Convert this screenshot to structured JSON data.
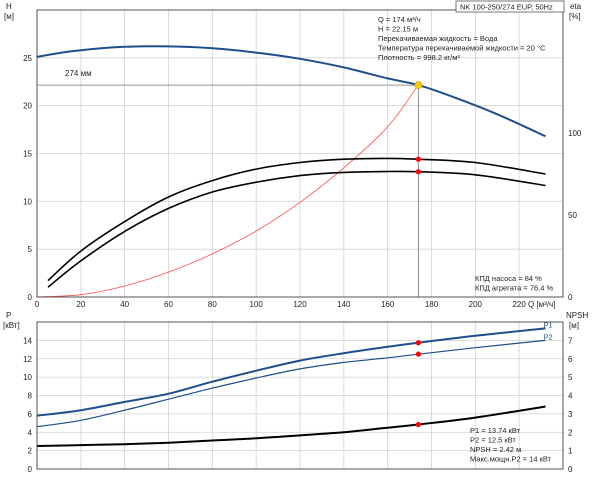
{
  "title": "NK 100-250/274 EUP, 50Hz",
  "chart_data": [
    {
      "type": "line",
      "panel": "head-efficiency",
      "y_left_label": [
        "H",
        "[м]"
      ],
      "y_right_label": [
        "eta",
        "[%]"
      ],
      "x_label": "Q [м³/ч]",
      "xlim": [
        0,
        240
      ],
      "ylim_left": [
        0,
        30
      ],
      "ylim_right": [
        0,
        175
      ],
      "x_ticks": [
        0,
        20,
        40,
        60,
        80,
        100,
        120,
        140,
        160,
        180,
        200,
        220
      ],
      "y_left_ticks": [
        0,
        5,
        10,
        15,
        20,
        25
      ],
      "y_right_ticks": [
        0,
        50,
        100
      ],
      "grid": true,
      "impeller_label": "274 мм",
      "info_lines": [
        "Q = 174 м³/ч",
        "H = 22.15 м",
        "Перекачиваемая жидкость = Вода",
        "Температура перекачиваемой жидкости = 20 °C",
        "Плотность = 998.2 кг/м³"
      ],
      "eff_lines": [
        "КПД насоса = 84 %",
        "КПД агрегата = 76.4 %"
      ],
      "duty_point": {
        "q": 174,
        "h": 22.15
      },
      "colors": {
        "head": "#1f4e8c",
        "system": "#ff4d4d",
        "eff": "#000000",
        "marker": "#ff0000",
        "duty": "#ffcc00"
      },
      "series": [
        {
          "curve": "head",
          "axis": "left",
          "x": [
            0,
            10,
            20,
            40,
            60,
            80,
            100,
            120,
            140,
            160,
            174,
            190,
            210,
            232
          ],
          "y": [
            25.1,
            25.5,
            25.8,
            26.15,
            26.2,
            26.0,
            25.55,
            24.9,
            24.0,
            22.85,
            22.15,
            20.9,
            19.1,
            16.8
          ]
        },
        {
          "curve": "system",
          "axis": "left",
          "x": [
            0,
            20,
            40,
            60,
            80,
            100,
            120,
            140,
            160,
            174
          ],
          "y": [
            0,
            0.24,
            1.15,
            2.6,
            4.5,
            6.9,
            9.9,
            13.5,
            17.8,
            22.15
          ]
        },
        {
          "curve": "eff-pump",
          "axis": "right",
          "x": [
            5,
            20,
            40,
            60,
            80,
            100,
            120,
            140,
            160,
            174,
            200,
            232
          ],
          "y": [
            10,
            28,
            46,
            61,
            71,
            78,
            82,
            84,
            84.5,
            84,
            82,
            75
          ]
        },
        {
          "curve": "eff-unit",
          "axis": "right",
          "x": [
            5,
            20,
            40,
            60,
            80,
            100,
            120,
            140,
            160,
            174,
            200,
            232
          ],
          "y": [
            6,
            22,
            40,
            54,
            64,
            70,
            74,
            76,
            76.5,
            76.4,
            74.5,
            68
          ]
        }
      ],
      "markers": [
        {
          "x": 174,
          "y": 84,
          "axis": "right"
        },
        {
          "x": 174,
          "y": 76.4,
          "axis": "right"
        }
      ]
    },
    {
      "type": "line",
      "panel": "power-npsh",
      "y_left_label": [
        "P",
        "[кВт]"
      ],
      "y_right_label": [
        "NPSH",
        "[м]"
      ],
      "xlim": [
        0,
        240
      ],
      "ylim_left": [
        0,
        16
      ],
      "ylim_right": [
        0,
        8
      ],
      "x_ticks": [
        0,
        20,
        40,
        60,
        80,
        100,
        120,
        140,
        160,
        180,
        200,
        220
      ],
      "y_left_ticks": [
        0,
        2,
        4,
        6,
        8,
        10,
        12,
        14
      ],
      "y_right_ticks": [
        0,
        1,
        2,
        3,
        4,
        5,
        6,
        7
      ],
      "grid": true,
      "info_lines": [
        "P1 = 13.74 кВт",
        "P2 = 12.5 кВт",
        "NPSH = 2.42 м",
        "Макс.мощн.P2 = 14 кВт"
      ],
      "series": [
        {
          "name": "P1",
          "axis": "left",
          "x": [
            0,
            20,
            40,
            60,
            80,
            100,
            120,
            140,
            160,
            174,
            200,
            232
          ],
          "y": [
            5.8,
            6.4,
            7.3,
            8.2,
            9.5,
            10.7,
            11.8,
            12.6,
            13.3,
            13.74,
            14.5,
            15.3
          ]
        },
        {
          "name": "P2",
          "axis": "left",
          "x": [
            0,
            20,
            40,
            60,
            80,
            100,
            120,
            140,
            160,
            174,
            200,
            232
          ],
          "y": [
            4.6,
            5.3,
            6.4,
            7.6,
            8.8,
            9.9,
            10.9,
            11.6,
            12.1,
            12.5,
            13.2,
            14.0
          ]
        },
        {
          "curve": "npsh",
          "axis": "right",
          "x": [
            0,
            20,
            40,
            60,
            80,
            100,
            120,
            140,
            160,
            174,
            200,
            232
          ],
          "y": [
            1.25,
            1.3,
            1.35,
            1.43,
            1.55,
            1.67,
            1.83,
            2.0,
            2.25,
            2.42,
            2.8,
            3.4
          ]
        }
      ],
      "markers": [
        {
          "x": 174,
          "y": 13.74,
          "axis": "left"
        },
        {
          "x": 174,
          "y": 12.5,
          "axis": "left"
        },
        {
          "x": 174,
          "y": 2.42,
          "axis": "right"
        }
      ]
    }
  ]
}
